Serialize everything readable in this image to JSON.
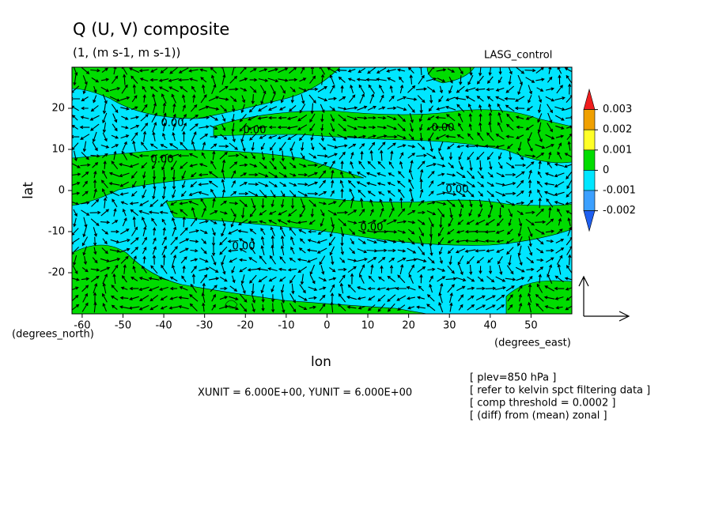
{
  "chart_data": {
    "type": "contour",
    "title": "Q (U, V) composite",
    "subtitle": "(1, (m s-1, m s-1))",
    "run_label": "LASG_control",
    "xlabel": "lon",
    "ylabel": "lat",
    "x_unit_label": "(degrees_east)",
    "y_unit_label": "(degrees_north)",
    "xlim": [
      -62.5,
      60
    ],
    "ylim": [
      -30,
      30
    ],
    "xticks": [
      -60,
      -50,
      -40,
      -30,
      -20,
      -10,
      0,
      10,
      20,
      30,
      40,
      50
    ],
    "yticks": [
      -20,
      -10,
      0,
      10,
      20
    ],
    "colorbar": {
      "levels": [
        0.003,
        0.002,
        0.001,
        0,
        -0.001,
        -0.002
      ],
      "colors": [
        "#f01e1e",
        "#f0a000",
        "#ffff28",
        "#00dc00",
        "#00e6ff",
        "#3ca0ff",
        "#1e5ff0"
      ]
    },
    "contour_labels": [
      "0.00",
      "0.00",
      "0.00",
      "0.00",
      "0.00",
      "0.00",
      "0.00"
    ],
    "vector_scale_note": "XUNIT = 6.000E+00, YUNIT = 6.000E+00",
    "notes": [
      "[ plev=850 hPa ]",
      "[ refer to kelvin spct filtering data ]",
      "[ comp threshold = 0.0002 ]",
      "[ (diff) from (mean) zonal ]"
    ]
  }
}
